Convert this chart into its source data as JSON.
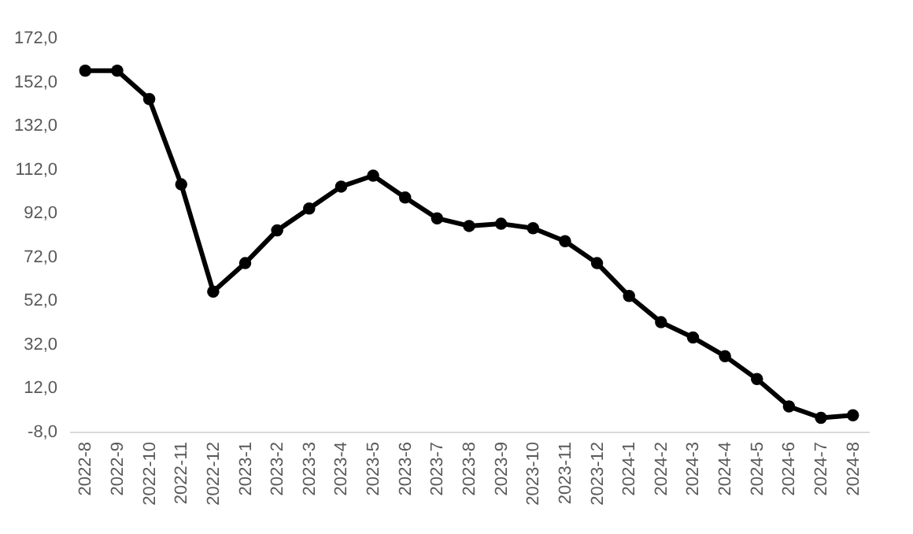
{
  "chart_data": {
    "type": "line",
    "categories": [
      "2022-8",
      "2022-9",
      "2022-10",
      "2022-11",
      "2022-12",
      "2023-1",
      "2023-2",
      "2023-3",
      "2023-4",
      "2023-5",
      "2023-6",
      "2023-7",
      "2023-8",
      "2023-9",
      "2023-10",
      "2023-11",
      "2023-12",
      "2024-1",
      "2024-2",
      "2024-3",
      "2024-4",
      "2024-5",
      "2024-6",
      "2024-7",
      "2024-8"
    ],
    "series": [
      {
        "color": "#000000",
        "values": [
          157,
          157,
          144,
          105,
          56,
          69,
          84,
          94,
          104,
          109,
          99,
          89.5,
          86,
          87,
          85,
          79,
          69,
          54,
          42,
          35,
          26.5,
          16,
          3.5,
          -1.7,
          -0.5
        ]
      }
    ],
    "ylim": [
      -8,
      172
    ],
    "yticks": [
      {
        "value": -8,
        "label": "-8,0"
      },
      {
        "value": 12,
        "label": "12,0"
      },
      {
        "value": 32,
        "label": "32,0"
      },
      {
        "value": 52,
        "label": "52,0"
      },
      {
        "value": 72,
        "label": "72,0"
      },
      {
        "value": 92,
        "label": "92,0"
      },
      {
        "value": 112,
        "label": "112,0"
      },
      {
        "value": 132,
        "label": "132,0"
      },
      {
        "value": 152,
        "label": "152,0"
      },
      {
        "value": 172,
        "label": "172,0"
      }
    ],
    "grid": false,
    "legend": false,
    "marker": "circle",
    "line_style": "solid"
  }
}
